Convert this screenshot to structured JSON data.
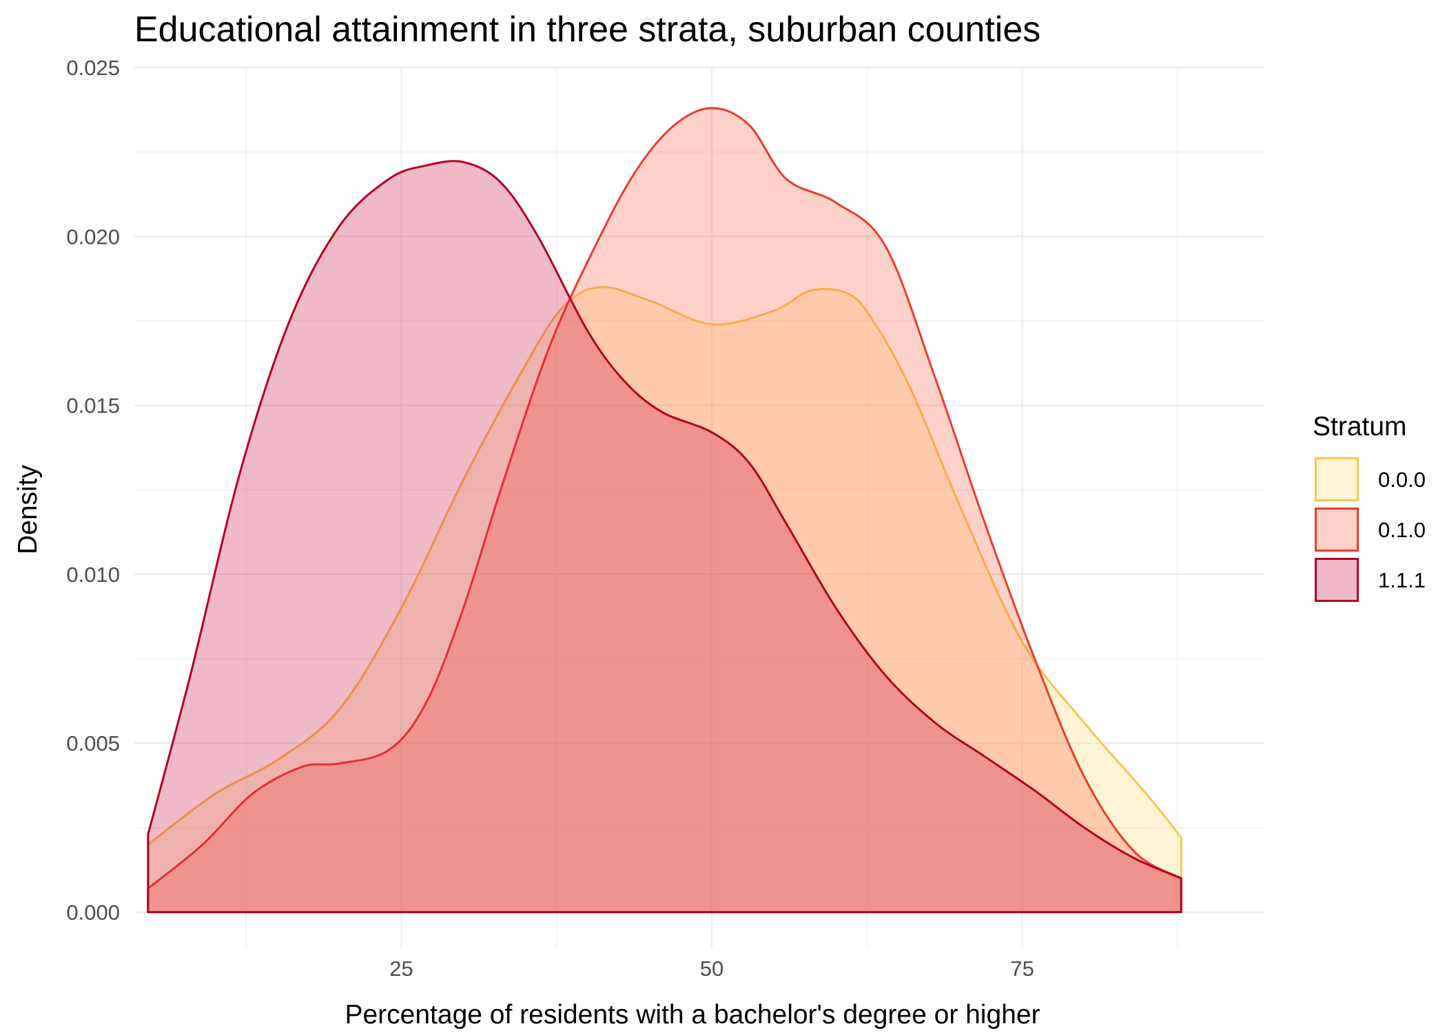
{
  "chart_data": {
    "type": "area",
    "subtype": "density",
    "title": "Educational attainment in three strata, suburban counties",
    "xlabel": "Percentage of residents with a bachelor's degree or higher",
    "ylabel": "Density",
    "xlim": [
      3.5,
      94.5
    ],
    "ylim": [
      -0.00105,
      0.025
    ],
    "x_ticks": [
      25,
      50,
      75
    ],
    "x_tick_labels": [
      "25",
      "50",
      "75"
    ],
    "x_minor_ticks": [
      12.5,
      37.5,
      62.5,
      87.5
    ],
    "y_ticks": [
      0.0,
      0.005,
      0.01,
      0.015,
      0.02,
      0.025
    ],
    "y_tick_labels": [
      "0.000",
      "0.005",
      "0.010",
      "0.015",
      "0.020",
      "0.025"
    ],
    "y_minor_ticks": [
      0.0025,
      0.0075,
      0.0125,
      0.0175,
      0.0225
    ],
    "grid": true,
    "legend": {
      "title": "Stratum",
      "position": "right"
    },
    "series": [
      {
        "name": "0.0.0",
        "fill": "#fed976",
        "stroke": "#fec44f",
        "fill_opacity": 0.3,
        "x": [
          4.6,
          10,
          15,
          20,
          25,
          30,
          35,
          38,
          41,
          45,
          50,
          55,
          58,
          61,
          63,
          66,
          70,
          75,
          80,
          85,
          87.8
        ],
        "y": [
          0.002,
          0.0035,
          0.0045,
          0.006,
          0.009,
          0.0128,
          0.0162,
          0.0179,
          0.0185,
          0.0181,
          0.0174,
          0.0178,
          0.0184,
          0.0183,
          0.0175,
          0.0155,
          0.012,
          0.008,
          0.0056,
          0.0035,
          0.0022
        ]
      },
      {
        "name": "0.1.0",
        "fill": "#fb6a4a",
        "stroke": "#ef3b2c",
        "fill_opacity": 0.3,
        "x": [
          4.6,
          9,
          13,
          17,
          20,
          24,
          27,
          30,
          33,
          37,
          41,
          44,
          47,
          50,
          53,
          56,
          60,
          64,
          68,
          72,
          76,
          80,
          84,
          87.8
        ],
        "y": [
          0.0007,
          0.002,
          0.0035,
          0.0043,
          0.0044,
          0.0048,
          0.0062,
          0.009,
          0.0125,
          0.0168,
          0.02,
          0.022,
          0.0233,
          0.0238,
          0.0233,
          0.0217,
          0.021,
          0.0197,
          0.0158,
          0.0115,
          0.0075,
          0.004,
          0.0018,
          0.001
        ]
      },
      {
        "name": "1.1.1",
        "fill": "#c9184a",
        "stroke": "#b5001f",
        "fill_opacity": 0.3,
        "x": [
          4.6,
          8,
          12,
          16,
          20,
          24,
          27,
          30,
          33,
          36,
          40,
          43,
          46,
          50,
          53,
          56,
          60,
          64,
          68,
          72,
          76,
          80,
          84,
          87.8
        ],
        "y": [
          0.0023,
          0.007,
          0.013,
          0.0175,
          0.0203,
          0.0217,
          0.0221,
          0.0222,
          0.0216,
          0.02,
          0.0172,
          0.0157,
          0.0148,
          0.0142,
          0.0133,
          0.0115,
          0.009,
          0.007,
          0.0056,
          0.0046,
          0.0036,
          0.0025,
          0.0016,
          0.001
        ]
      }
    ]
  }
}
